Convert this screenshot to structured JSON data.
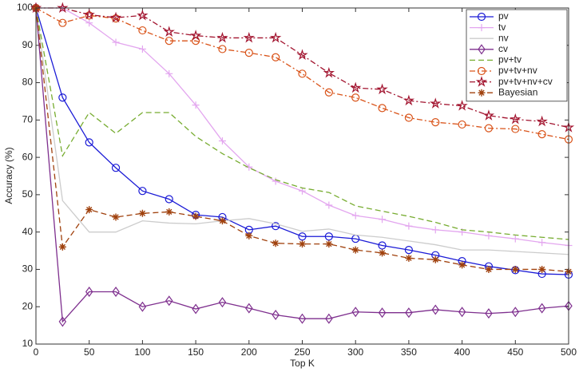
{
  "chart_data": {
    "type": "line",
    "x_label": "Top K",
    "y_label": "Accuracy (%)",
    "x": [
      0,
      25,
      50,
      75,
      100,
      125,
      150,
      175,
      200,
      225,
      250,
      275,
      300,
      325,
      350,
      375,
      400,
      425,
      450,
      475,
      500
    ],
    "xlim": [
      0,
      500
    ],
    "xticks": [
      0,
      50,
      100,
      150,
      200,
      250,
      300,
      350,
      400,
      450,
      500
    ],
    "ylim": [
      10,
      100
    ],
    "yticks": [
      10,
      20,
      30,
      40,
      50,
      60,
      70,
      80,
      90,
      100
    ],
    "grid": false,
    "legend": "upper right",
    "series": [
      {
        "name": "pv",
        "color": "#1a1ad6",
        "dash": "solid",
        "marker": "circle",
        "values": [
          100,
          76,
          64,
          57.2,
          51,
          48.8,
          44.6,
          44,
          40.6,
          41.6,
          38.8,
          38.8,
          38.2,
          36.4,
          35.2,
          33.8,
          32.2,
          30.8,
          29.8,
          28.8,
          28.6
        ]
      },
      {
        "name": "tv",
        "color": "#e3a6ef",
        "dash": "solid",
        "marker": "plus",
        "values": [
          100,
          100,
          96,
          90.8,
          89,
          82.4,
          74,
          64.4,
          57.4,
          53.6,
          51,
          47.2,
          44.4,
          43.4,
          41.6,
          40.6,
          40,
          39,
          38.2,
          37.2,
          36.4
        ]
      },
      {
        "name": "nv",
        "color": "#cccccc",
        "dash": "solid",
        "marker": "none",
        "values": [
          100,
          48.4,
          40,
          40,
          43,
          42.4,
          42.2,
          43,
          43.6,
          42.2,
          40.2,
          40.8,
          39.2,
          38.6,
          37.6,
          36.6,
          35.2,
          35.2,
          34.8,
          34.4,
          34
        ]
      },
      {
        "name": "cv",
        "color": "#7e2f8e",
        "dash": "solid",
        "marker": "diamond",
        "values": [
          100,
          16,
          24,
          24,
          20,
          21.6,
          19.4,
          21.2,
          19.6,
          17.8,
          16.8,
          16.8,
          18.6,
          18.4,
          18.4,
          19.2,
          18.6,
          18.2,
          18.6,
          19.6,
          20.2
        ]
      },
      {
        "name": "pv+tv",
        "color": "#77ac30",
        "dash": "dashed",
        "marker": "none",
        "values": [
          100,
          60.4,
          72,
          66.4,
          72,
          72,
          65.6,
          61,
          57.2,
          54,
          51.8,
          50.6,
          47,
          45.6,
          44.2,
          42.6,
          40.6,
          40,
          39.2,
          38.6,
          38
        ]
      },
      {
        "name": "pv+tv+nv",
        "color": "#d95319",
        "dash": "dashdot",
        "marker": "circle",
        "values": [
          100,
          96,
          98,
          97.2,
          94,
          91.2,
          91.2,
          89,
          88,
          86.8,
          82.4,
          77.4,
          76,
          73.2,
          70.6,
          69.4,
          68.8,
          67.8,
          67.6,
          66.2,
          64.8
        ]
      },
      {
        "name": "pv+tv+nv+cv",
        "color": "#a2142f",
        "dash": "dashdot",
        "marker": "star",
        "values": [
          100,
          100,
          98.2,
          97.4,
          98,
          93.6,
          92.6,
          92,
          92,
          92,
          87.4,
          82.6,
          78.6,
          78.2,
          75.2,
          74.4,
          73.8,
          71.2,
          70.2,
          69.6,
          68
        ]
      },
      {
        "name": "Bayesian",
        "color": "#a0410d",
        "dash": "dashed",
        "marker": "asterisk",
        "values": [
          100,
          36,
          46,
          44,
          45,
          45.4,
          44.2,
          43,
          39,
          37,
          36.8,
          36.8,
          35.2,
          34.4,
          33,
          32.6,
          31.2,
          30,
          30,
          30,
          29.4
        ]
      }
    ]
  }
}
